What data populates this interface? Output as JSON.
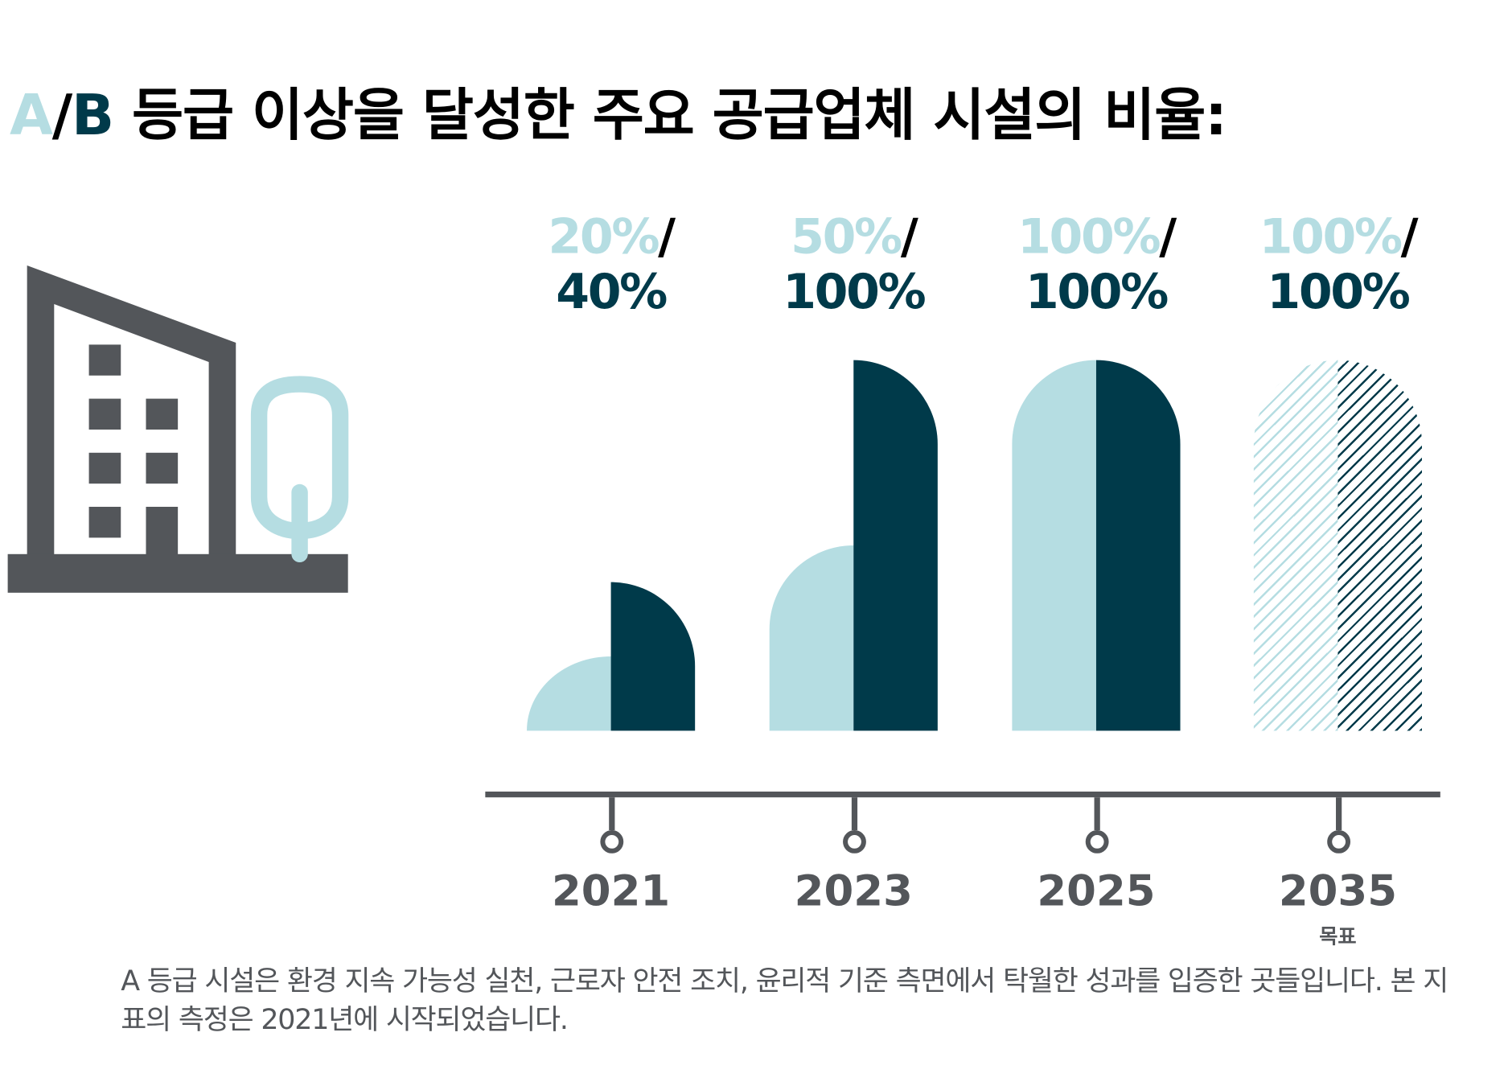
{
  "title": {
    "a": "A",
    "slash": "/",
    "b": "B",
    "rest": " 등급 이상을 달성한 주요 공급업체 시설의 비율:"
  },
  "colors": {
    "a_grade": "#b5dde2",
    "b_grade": "#003a4a",
    "gray": "#53565a"
  },
  "icons": [
    "building-icon",
    "tree-icon"
  ],
  "chart_data": {
    "type": "bar",
    "categories": [
      "2021",
      "2023",
      "2025",
      "2035"
    ],
    "series": [
      {
        "name": "A",
        "values": [
          20,
          50,
          100,
          100
        ]
      },
      {
        "name": "B",
        "values": [
          40,
          100,
          100,
          100
        ]
      }
    ],
    "labels": [
      {
        "a": "20%",
        "b": "40%"
      },
      {
        "a": "50%",
        "b": "100%"
      },
      {
        "a": "100%",
        "b": "100%"
      },
      {
        "a": "100%",
        "b": "100%"
      }
    ],
    "target_label": "목표",
    "target_category": "2035",
    "target_style": "hatched",
    "ylim": [
      0,
      100
    ]
  },
  "footnote": "A 등급 시설은 환경 지속 가능성 실천, 근로자 안전 조치, 윤리적 기준 측면에서 탁월한 성과를 입증한 곳들입니다. 본 지표의 측정은 2021년에 시작되었습니다."
}
